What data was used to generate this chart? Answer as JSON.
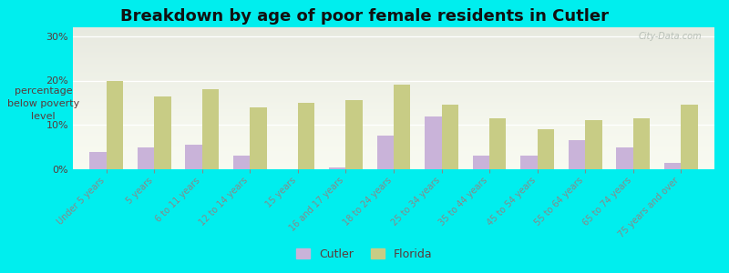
{
  "title": "Breakdown by age of poor female residents in Cutler",
  "ylabel": "percentage\nbelow poverty\nlevel",
  "categories": [
    "Under 5 years",
    "5 years",
    "6 to 11 years",
    "12 to 14 years",
    "15 years",
    "16 and 17 years",
    "18 to 24 years",
    "25 to 34 years",
    "35 to 44 years",
    "45 to 54 years",
    "55 to 64 years",
    "65 to 74 years",
    "75 years and over"
  ],
  "cutler_values": [
    4.0,
    5.0,
    5.5,
    3.0,
    0.0,
    0.5,
    7.5,
    12.0,
    3.0,
    3.0,
    6.5,
    5.0,
    1.5
  ],
  "florida_values": [
    20.0,
    16.5,
    18.0,
    14.0,
    15.0,
    15.5,
    19.0,
    14.5,
    11.5,
    9.0,
    11.0,
    11.5,
    14.5
  ],
  "cutler_color": "#c9b3d9",
  "florida_color": "#c8cc85",
  "background_plot_top": "#e8edd8",
  "background_plot_bottom": "#f8faf0",
  "background_figure": "#00eeee",
  "ylim": [
    0,
    32
  ],
  "yticks": [
    0,
    10,
    20,
    30
  ],
  "bar_width": 0.35,
  "title_fontsize": 13,
  "axis_label_fontsize": 8,
  "tick_label_fontsize": 7,
  "legend_fontsize": 9,
  "watermark": "City-Data.com"
}
